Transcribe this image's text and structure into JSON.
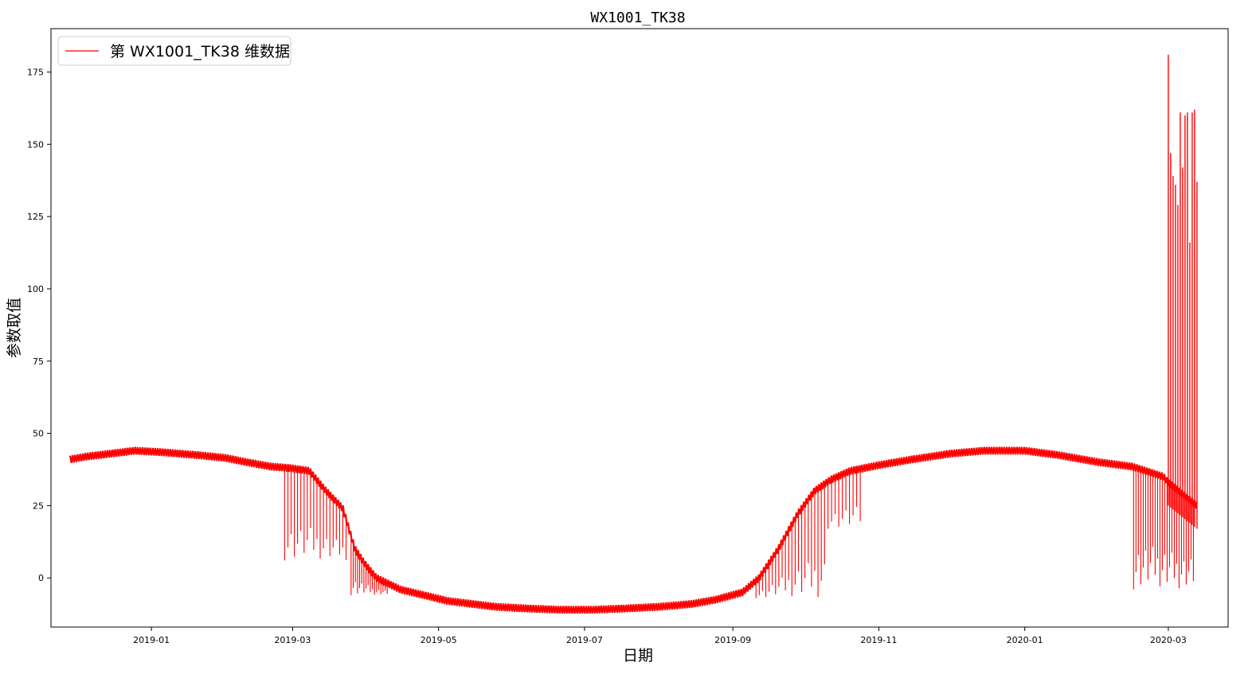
{
  "chart_data": {
    "type": "line",
    "title": "WX1001_TK38",
    "xlabel": "日期",
    "ylabel": "参数取值",
    "x_type": "date",
    "xlim": [
      "2018-11-20",
      "2020-03-26"
    ],
    "ylim": [
      -17,
      190
    ],
    "yticks": [
      0,
      25,
      50,
      75,
      100,
      125,
      150,
      175
    ],
    "xticks": [
      "2019-01",
      "2019-03",
      "2019-05",
      "2019-07",
      "2019-09",
      "2019-11",
      "2020-01",
      "2020-03"
    ],
    "grid": false,
    "legend_position": "top-left",
    "series": [
      {
        "name": "第 WX1001_TK38 维数据",
        "color": "#ff0000",
        "baseline": [
          [
            "2018-11-28",
            41
          ],
          [
            "2018-12-05",
            42
          ],
          [
            "2018-12-15",
            43
          ],
          [
            "2018-12-25",
            44
          ],
          [
            "2019-01-05",
            43.5
          ],
          [
            "2019-01-20",
            42.5
          ],
          [
            "2019-02-01",
            41.5
          ],
          [
            "2019-02-10",
            40
          ],
          [
            "2019-02-20",
            38.5
          ],
          [
            "2019-02-28",
            38
          ],
          [
            "2019-03-08",
            37
          ],
          [
            "2019-03-15",
            30
          ],
          [
            "2019-03-22",
            24
          ],
          [
            "2019-03-27",
            10
          ],
          [
            "2019-03-31",
            5
          ],
          [
            "2019-04-05",
            0
          ],
          [
            "2019-04-15",
            -4
          ],
          [
            "2019-04-25",
            -6
          ],
          [
            "2019-05-05",
            -8
          ],
          [
            "2019-05-15",
            -9
          ],
          [
            "2019-05-25",
            -10
          ],
          [
            "2019-06-05",
            -10.5
          ],
          [
            "2019-06-20",
            -11
          ],
          [
            "2019-07-05",
            -11
          ],
          [
            "2019-07-20",
            -10.5
          ],
          [
            "2019-08-01",
            -10
          ],
          [
            "2019-08-15",
            -9
          ],
          [
            "2019-08-25",
            -7.5
          ],
          [
            "2019-09-05",
            -5
          ],
          [
            "2019-09-12",
            0
          ],
          [
            "2019-09-20",
            10
          ],
          [
            "2019-09-28",
            22
          ],
          [
            "2019-10-05",
            30
          ],
          [
            "2019-10-12",
            34
          ],
          [
            "2019-10-20",
            37
          ],
          [
            "2019-11-01",
            39
          ],
          [
            "2019-11-15",
            41
          ],
          [
            "2019-12-01",
            43
          ],
          [
            "2019-12-15",
            44
          ],
          [
            "2020-01-01",
            44
          ],
          [
            "2020-01-15",
            42.5
          ],
          [
            "2020-02-01",
            40
          ],
          [
            "2020-02-15",
            38.5
          ],
          [
            "2020-02-28",
            35
          ],
          [
            "2020-03-01",
            33
          ],
          [
            "2020-03-13",
            25
          ]
        ],
        "spike_clusters": [
          {
            "start": "2019-02-25",
            "end": "2019-03-24",
            "low": 6,
            "count": 20
          },
          {
            "start": "2019-03-25",
            "end": "2019-04-10",
            "low": -6,
            "count": 18
          },
          {
            "start": "2019-09-10",
            "end": "2019-10-10",
            "low": -7,
            "count": 22
          },
          {
            "start": "2019-10-10",
            "end": "2019-10-25",
            "low": 17,
            "count": 10
          },
          {
            "start": "2020-02-15",
            "end": "2020-03-12",
            "low": -4,
            "count": 26
          }
        ],
        "upper_spikes": [
          [
            "2020-03-01",
            181
          ],
          [
            "2020-03-01",
            129
          ],
          [
            "2020-03-02",
            147
          ],
          [
            "2020-03-03",
            139
          ],
          [
            "2020-03-04",
            136
          ],
          [
            "2020-03-05",
            129
          ],
          [
            "2020-03-06",
            161
          ],
          [
            "2020-03-07",
            142
          ],
          [
            "2020-03-08",
            160
          ],
          [
            "2020-03-09",
            161
          ],
          [
            "2020-03-10",
            116
          ],
          [
            "2020-03-11",
            161
          ],
          [
            "2020-03-12",
            162
          ],
          [
            "2020-03-13",
            137
          ]
        ]
      }
    ]
  }
}
